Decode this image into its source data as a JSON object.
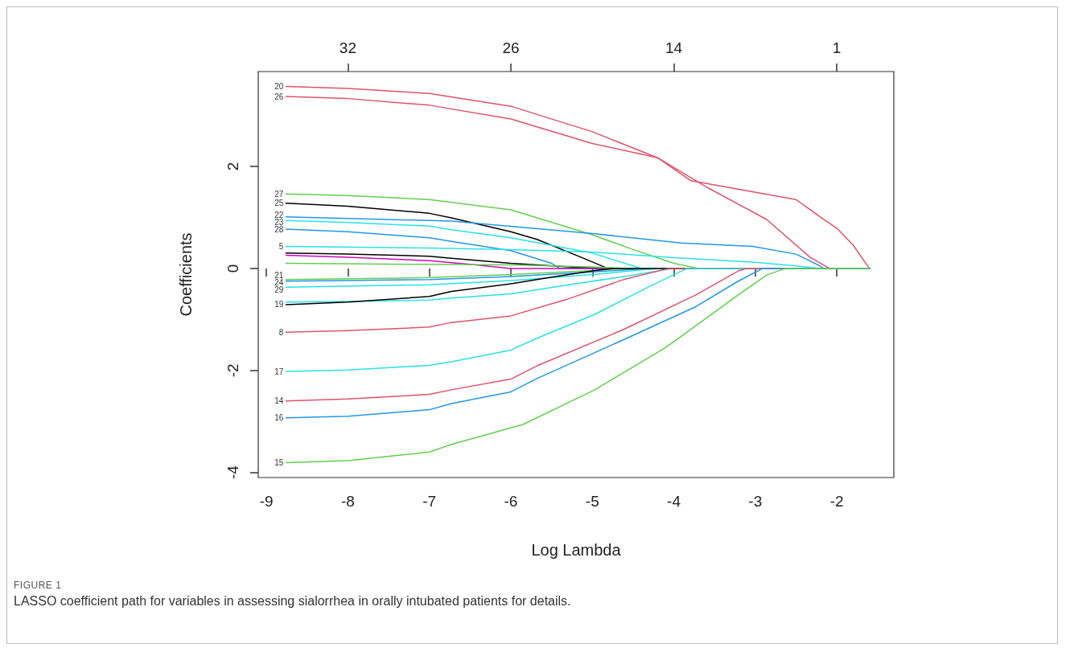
{
  "chart_data": {
    "type": "line",
    "xlabel": "Log Lambda",
    "ylabel": "Coefficients",
    "xlim": [
      -9.1,
      -1.3
    ],
    "xticks": [
      -9,
      -8,
      -7,
      -6,
      -5,
      -4,
      -3,
      -2
    ],
    "ylim": [
      -4.1,
      3.86
    ],
    "yticks": [
      -4,
      -2,
      0,
      2
    ],
    "grid": false,
    "legend": false,
    "marker": "none",
    "line_style": "solid",
    "annotations": [
      {
        "text": "32",
        "x": -8
      },
      {
        "text": "26",
        "x": -6
      },
      {
        "text": "14",
        "x": -4
      },
      {
        "text": "1",
        "x": -2
      },
      "FIGURE 1",
      "LASSO coefficient path for variables in assessing sialorrhea in orally intubated patients for details."
    ],
    "series": [
      {
        "name": "20",
        "color": "#df536b",
        "x": [
          -8.76,
          -8,
          -7,
          -6,
          -5,
          -4.2,
          -3.57,
          -2.86,
          -2.33,
          -2.09,
          -1.6
        ],
        "values": [
          3.57,
          3.53,
          3.43,
          3.18,
          2.68,
          2.17,
          1.57,
          0.96,
          0.22,
          0,
          0
        ]
      },
      {
        "name": "26",
        "color": "#df536b",
        "x": [
          -8.76,
          -8,
          -7,
          -6,
          -5,
          -4.2,
          -3.79,
          -2.5,
          -2.16,
          -2,
          -1.8,
          -1.6
        ],
        "values": [
          3.37,
          3.33,
          3.2,
          2.93,
          2.45,
          2.17,
          1.72,
          1.35,
          0.96,
          0.79,
          0.46,
          0
        ]
      },
      {
        "name": "27",
        "color": "#61d04f",
        "x": [
          -8.76,
          -8,
          -7,
          -6,
          -5,
          -4.5,
          -4,
          -3.7,
          -1.6
        ],
        "values": [
          1.46,
          1.43,
          1.35,
          1.15,
          0.66,
          0.37,
          0.1,
          0,
          0
        ]
      },
      {
        "name": "25",
        "color": "#000000",
        "x": [
          -8.76,
          -8,
          -7,
          -6.73,
          -6,
          -5.68,
          -5.14,
          -4.81,
          -1.6
        ],
        "values": [
          1.28,
          1.22,
          1.08,
          0.99,
          0.72,
          0.57,
          0.22,
          0,
          0
        ]
      },
      {
        "name": "22",
        "color": "#2297e6",
        "x": [
          -8.76,
          -6.73,
          -4.97,
          -3.91,
          -3.03,
          -2.5,
          -2.22,
          -2.16,
          -1.6
        ],
        "values": [
          1.01,
          0.93,
          0.68,
          0.5,
          0.43,
          0.28,
          0.06,
          0,
          0
        ]
      },
      {
        "name": "23",
        "color": "#28e2e5",
        "x": [
          -8.76,
          -8,
          -7,
          -6.73,
          -6,
          -5,
          -4.5,
          -4.4,
          -1.6
        ],
        "values": [
          0.94,
          0.9,
          0.83,
          0.76,
          0.6,
          0.3,
          0.05,
          0,
          0
        ]
      },
      {
        "name": "28",
        "color": "#2297e6",
        "x": [
          -8.76,
          -8,
          -7,
          -6.73,
          -6,
          -5.5,
          -5.4,
          -1.6
        ],
        "values": [
          0.77,
          0.72,
          0.6,
          0.53,
          0.35,
          0.1,
          0,
          0
        ]
      },
      {
        "name": "5",
        "color": "#28e2e5",
        "x": [
          -8.76,
          -7,
          -6,
          -5,
          -4,
          -3,
          -2.5,
          -2.2,
          -1.6
        ],
        "values": [
          0.43,
          0.4,
          0.37,
          0.32,
          0.21,
          0.12,
          0.05,
          0,
          0
        ]
      },
      {
        "color": "#000000",
        "x": [
          -8.76,
          -8,
          -7,
          -6.73,
          -6,
          -5.2,
          -4.8,
          -1.6
        ],
        "values": [
          0.3,
          0.28,
          0.24,
          0.2,
          0.1,
          0.02,
          0,
          0
        ]
      },
      {
        "color": "#cd0bbc",
        "x": [
          -8.76,
          -8,
          -7,
          -6.5,
          -6,
          -1.6
        ],
        "values": [
          0.26,
          0.22,
          0.15,
          0.08,
          0,
          0
        ]
      },
      {
        "color": "#61d04f",
        "x": [
          -8.76,
          -7,
          -6,
          -5,
          -4.6,
          -1.6
        ],
        "values": [
          0.1,
          0.08,
          0.07,
          0.03,
          0,
          0
        ]
      },
      {
        "name": "21",
        "color": "#61d04f",
        "x": [
          -8.76,
          -7,
          -6,
          -5,
          -4.6,
          -1.6
        ],
        "values": [
          -0.22,
          -0.18,
          -0.12,
          -0.04,
          0,
          0
        ]
      },
      {
        "name": "24",
        "color": "#2297e6",
        "x": [
          -8.76,
          -7,
          -6,
          -5,
          -4.3,
          -1.6
        ],
        "values": [
          -0.25,
          -0.22,
          -0.16,
          -0.07,
          0,
          0
        ]
      },
      {
        "name": "29",
        "color": "#28e2e5",
        "x": [
          -8.76,
          -7,
          -6,
          -5,
          -4.4,
          -4.2,
          -1.6
        ],
        "values": [
          -0.37,
          -0.32,
          -0.24,
          -0.12,
          -0.03,
          0,
          0
        ]
      },
      {
        "color": "#28e2e5",
        "x": [
          -8.76,
          -8,
          -7,
          -6.73,
          -6,
          -5.32,
          -4.5,
          -4.02,
          -1.6
        ],
        "values": [
          -0.66,
          -0.65,
          -0.62,
          -0.58,
          -0.5,
          -0.33,
          -0.13,
          0,
          0
        ]
      },
      {
        "name": "19",
        "color": "#000000",
        "x": [
          -8.76,
          -8,
          -7,
          -6.73,
          -6,
          -5.5,
          -5,
          -4.76,
          -1.6
        ],
        "values": [
          -0.71,
          -0.66,
          -0.55,
          -0.45,
          -0.3,
          -0.17,
          -0.05,
          0,
          0
        ]
      },
      {
        "name": "8",
        "color": "#df536b",
        "x": [
          -8.76,
          -8,
          -7,
          -6.73,
          -6,
          -5.32,
          -4.62,
          -4.06,
          -1.6
        ],
        "values": [
          -1.25,
          -1.22,
          -1.15,
          -1.06,
          -0.93,
          -0.61,
          -0.22,
          0,
          0
        ]
      },
      {
        "name": "17",
        "color": "#28e2e5",
        "x": [
          -8.76,
          -8,
          -7,
          -6.73,
          -6,
          -5.68,
          -4.97,
          -4.27,
          -3.84,
          -1.6
        ],
        "values": [
          -2.02,
          -1.99,
          -1.9,
          -1.83,
          -1.6,
          -1.37,
          -0.9,
          -0.33,
          0,
          0
        ]
      },
      {
        "name": "14",
        "color": "#df536b",
        "x": [
          -8.76,
          -8,
          -7,
          -6.73,
          -6,
          -5.68,
          -4.62,
          -3.73,
          -3.21,
          -3.1,
          -1.6
        ],
        "values": [
          -2.6,
          -2.56,
          -2.47,
          -2.38,
          -2.17,
          -1.91,
          -1.2,
          -0.52,
          -0.05,
          0,
          0
        ]
      },
      {
        "name": "16",
        "color": "#2297e6",
        "x": [
          -8.76,
          -8,
          -7,
          -6.73,
          -6,
          -5.68,
          -4.62,
          -3.73,
          -3.21,
          -2.91,
          -1.6
        ],
        "values": [
          -2.93,
          -2.9,
          -2.77,
          -2.65,
          -2.42,
          -2.16,
          -1.4,
          -0.75,
          -0.25,
          0,
          0
        ]
      },
      {
        "name": "15",
        "color": "#61d04f",
        "x": [
          -8.76,
          -8,
          -7,
          -6.73,
          -5.85,
          -4.97,
          -4.09,
          -3.21,
          -2.86,
          -2.63,
          -1.6
        ],
        "values": [
          -3.81,
          -3.77,
          -3.6,
          -3.45,
          -3.06,
          -2.38,
          -1.54,
          -0.52,
          -0.13,
          0,
          0
        ]
      }
    ]
  }
}
